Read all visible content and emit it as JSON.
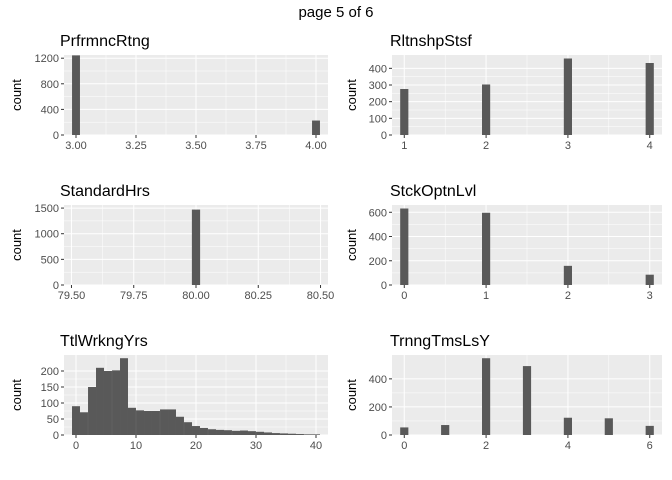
{
  "page_title": "page 5 of 6",
  "colors": {
    "panel_bg": "#ebebeb",
    "grid": "#ffffff",
    "bar": "#595959",
    "tick_text": "#4d4d4d"
  },
  "chart_data": [
    {
      "type": "bar",
      "title": "PrfrmncRtng",
      "ylabel": "count",
      "xlim": [
        2.95,
        4.05
      ],
      "ylim": [
        0,
        1250
      ],
      "xticks": [
        3.0,
        3.25,
        3.5,
        3.75,
        4.0
      ],
      "xtick_labels": [
        "3.00",
        "3.25",
        "3.50",
        "3.75",
        "4.00"
      ],
      "yticks": [
        0,
        400,
        800,
        1200
      ],
      "ytick_labels": [
        "0",
        "400",
        "800",
        "1200"
      ],
      "bin_width": 0.033,
      "x": [
        3.0,
        4.0
      ],
      "values": [
        1244,
        226
      ]
    },
    {
      "type": "bar",
      "title": "RltnshpStsf",
      "ylabel": "count",
      "xlim": [
        0.85,
        4.15
      ],
      "ylim": [
        0,
        480
      ],
      "xticks": [
        1,
        2,
        3,
        4
      ],
      "xtick_labels": [
        "1",
        "2",
        "3",
        "4"
      ],
      "yticks": [
        0,
        100,
        200,
        300,
        400
      ],
      "ytick_labels": [
        "0",
        "100",
        "200",
        "300",
        "400"
      ],
      "bin_width": 0.1,
      "x": [
        1,
        2,
        3,
        4
      ],
      "values": [
        276,
        303,
        459,
        432
      ]
    },
    {
      "type": "bar",
      "title": "StandardHrs",
      "ylabel": "count",
      "xlim": [
        79.47,
        80.53
      ],
      "ylim": [
        0,
        1560
      ],
      "xticks": [
        79.5,
        79.75,
        80.0,
        80.25,
        80.5
      ],
      "xtick_labels": [
        "79.50",
        "79.75",
        "80.00",
        "80.25",
        "80.50"
      ],
      "yticks": [
        0,
        500,
        1000,
        1500
      ],
      "ytick_labels": [
        "0",
        "500",
        "1000",
        "1500"
      ],
      "bin_width": 0.033,
      "x": [
        80.0
      ],
      "values": [
        1470
      ]
    },
    {
      "type": "bar",
      "title": "StckOptnLvl",
      "ylabel": "count",
      "xlim": [
        -0.15,
        3.15
      ],
      "ylim": [
        0,
        660
      ],
      "xticks": [
        0,
        1,
        2,
        3
      ],
      "xtick_labels": [
        "0",
        "1",
        "2",
        "3"
      ],
      "yticks": [
        0,
        200,
        400,
        600
      ],
      "ytick_labels": [
        "0",
        "200",
        "400",
        "600"
      ],
      "bin_width": 0.1,
      "x": [
        0,
        1,
        2,
        3
      ],
      "values": [
        631,
        596,
        158,
        85
      ]
    },
    {
      "type": "bar",
      "title": "TtlWrkngYrs",
      "ylabel": "count",
      "xlim": [
        -2,
        42
      ],
      "ylim": [
        0,
        250
      ],
      "xticks": [
        0,
        10,
        20,
        30,
        40
      ],
      "xtick_labels": [
        "0",
        "10",
        "20",
        "30",
        "40"
      ],
      "yticks": [
        0,
        50,
        100,
        150,
        200
      ],
      "ytick_labels": [
        "0",
        "50",
        "100",
        "150",
        "200"
      ],
      "bin_width": 1.33,
      "x": [
        0,
        1.33,
        2.67,
        4,
        5.33,
        6.67,
        8,
        9.33,
        10.67,
        12,
        13.33,
        14.67,
        16,
        17.33,
        18.67,
        20,
        21.33,
        22.67,
        24,
        25.33,
        26.67,
        28,
        29.33,
        30.67,
        32,
        33.33,
        34.67,
        36,
        37.33,
        38.67,
        40
      ],
      "values": [
        90,
        71,
        150,
        210,
        200,
        202,
        240,
        85,
        77,
        75,
        75,
        80,
        80,
        57,
        40,
        28,
        22,
        18,
        16,
        15,
        13,
        14,
        12,
        10,
        8,
        6,
        5,
        4,
        3,
        2,
        2
      ]
    },
    {
      "type": "bar",
      "title": "TrnngTmsLsY",
      "ylabel": "count",
      "xlim": [
        -0.3,
        6.3
      ],
      "ylim": [
        0,
        570
      ],
      "xticks": [
        0,
        2,
        4,
        6
      ],
      "xtick_labels": [
        "0",
        "2",
        "4",
        "6"
      ],
      "yticks": [
        0,
        200,
        400
      ],
      "ytick_labels": [
        "0",
        "200",
        "400"
      ],
      "bin_width": 0.2,
      "x": [
        0,
        1,
        2,
        3,
        4,
        5,
        6
      ],
      "values": [
        54,
        71,
        547,
        491,
        123,
        119,
        65
      ]
    }
  ]
}
